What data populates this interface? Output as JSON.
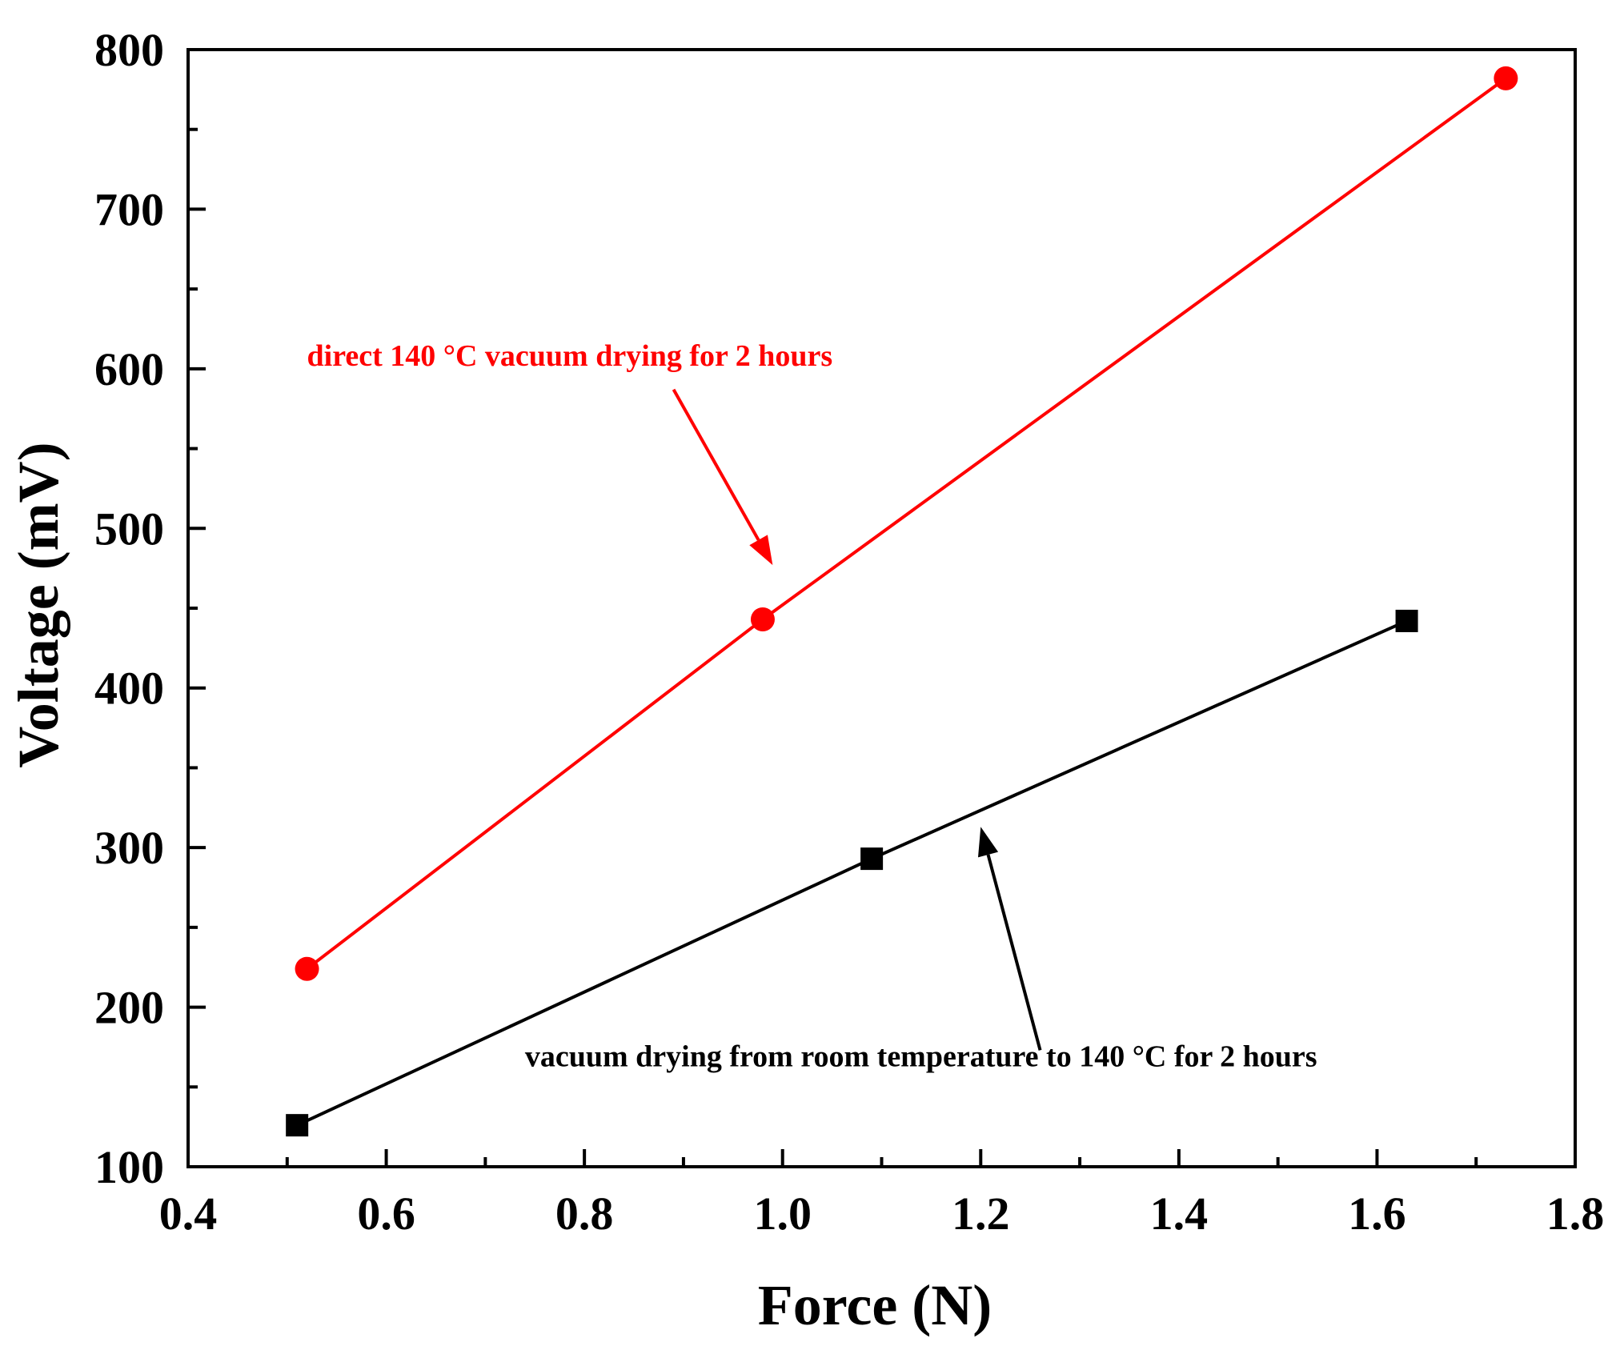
{
  "chart_data": {
    "type": "line",
    "title": "",
    "xlabel": "Force (N)",
    "ylabel": "Voltage (mV)",
    "xlim": [
      0.4,
      1.8
    ],
    "ylim": [
      100,
      800
    ],
    "x_major_ticks": [
      0.4,
      0.6,
      0.8,
      1.0,
      1.2,
      1.4,
      1.6,
      1.8
    ],
    "x_tick_labels": [
      "0.4",
      "0.6",
      "0.8",
      "1.0",
      "1.2",
      "1.4",
      "1.6",
      "1.8"
    ],
    "x_minor_ticks": [
      0.5,
      0.7,
      0.9,
      1.1,
      1.3,
      1.5,
      1.7
    ],
    "y_major_ticks": [
      100,
      200,
      300,
      400,
      500,
      600,
      700,
      800
    ],
    "y_tick_labels": [
      "100",
      "200",
      "300",
      "400",
      "500",
      "600",
      "700",
      "800"
    ],
    "y_minor_ticks": [
      150,
      250,
      350,
      450,
      550,
      650,
      750
    ],
    "grid": false,
    "legend": "none",
    "series": [
      {
        "color": "#ff0000",
        "marker": "circle",
        "x": [
          0.52,
          0.98,
          1.73
        ],
        "y": [
          224,
          443,
          782
        ]
      },
      {
        "color": "#000000",
        "marker": "square",
        "x": [
          0.51,
          1.09,
          1.63
        ],
        "y": [
          126,
          293,
          442
        ]
      }
    ],
    "annotations": [
      {
        "text": "direct 140 °C vacuum drying for 2 hours",
        "color": "#ff0000",
        "x": 0.52,
        "y": 602,
        "arrow_from": [
          0.89,
          587
        ],
        "arrow_to": [
          0.99,
          477
        ]
      },
      {
        "text": "vacuum drying from room temperature to 140 °C for 2 hours",
        "color": "#000000",
        "x": 0.74,
        "y": 163,
        "arrow_from": [
          1.26,
          173
        ],
        "arrow_to": [
          1.2,
          313
        ]
      }
    ]
  }
}
